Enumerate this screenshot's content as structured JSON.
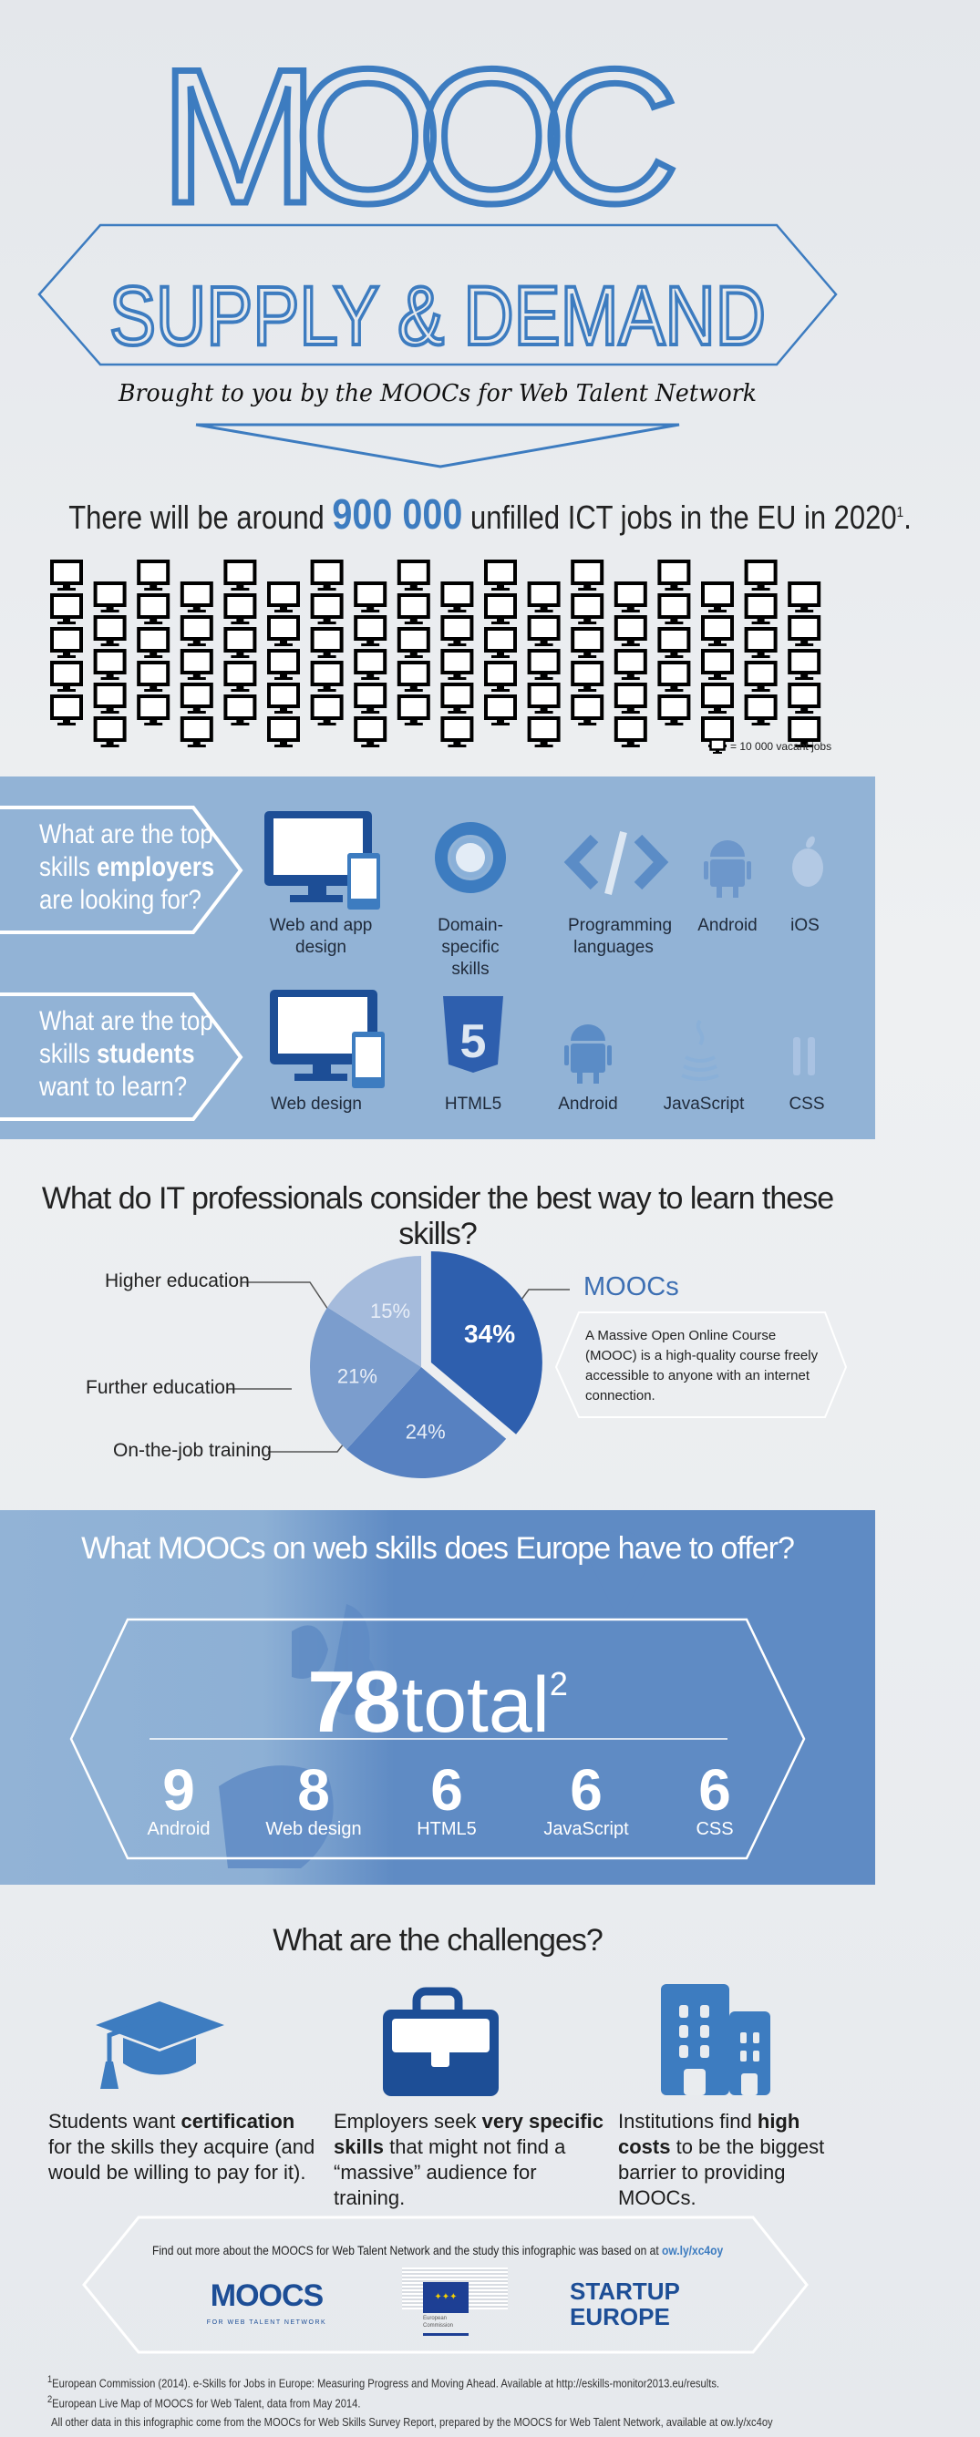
{
  "header": {
    "title": "MOOC",
    "subtitle": "SUPPLY & DEMAND",
    "tagline": "Brought to you by the MOOCs for Web Talent Network"
  },
  "jobs": {
    "text_before": "There will be around",
    "highlight": "900 000",
    "text_after": "unfilled ICT jobs in the EU in 2020",
    "footnote_ref": "1",
    "period": ".",
    "icon": "monitor-icon",
    "icon_count": 90,
    "legend": "= 10 000 vacant jobs"
  },
  "skills": {
    "employers": {
      "q1": "What are the top",
      "q2a": "skills ",
      "q2b": "employers",
      "q3": "are looking for?",
      "items": [
        {
          "label": "Web and app design",
          "icon": "monitor-phone-icon"
        },
        {
          "label": "Domain-specific skills",
          "icon": "ring-icon"
        },
        {
          "label": "Programming languages",
          "icon": "code-icon"
        },
        {
          "label": "Android",
          "icon": "android-icon"
        },
        {
          "label": "iOS",
          "icon": "apple-icon"
        }
      ]
    },
    "students": {
      "q1": "What are the top",
      "q2a": "skills ",
      "q2b": "students",
      "q3": "want to learn?",
      "items": [
        {
          "label": "Web design",
          "icon": "monitor-phone-icon"
        },
        {
          "label": "HTML5",
          "icon": "html5-icon"
        },
        {
          "label": "Android",
          "icon": "android-icon"
        },
        {
          "label": "JavaScript",
          "icon": "java-cup-icon"
        },
        {
          "label": "CSS",
          "icon": "css-braces-icon"
        }
      ]
    }
  },
  "learning": {
    "title": "What do IT professionals consider the best way to learn these skills?",
    "mooc_definition": "A Massive Open Online Course (MOOC) is a high-quality course freely accessible to anyone with an internet connection."
  },
  "chart_data": {
    "type": "pie",
    "title": "What do IT professionals consider the best way to learn these skills?",
    "slices": [
      {
        "label": "MOOCs",
        "value": 34,
        "display": "34%",
        "color": "#2e5fae",
        "exploded": true
      },
      {
        "label": "On-the-job training",
        "value": 24,
        "display": "24%",
        "color": "#5781c1"
      },
      {
        "label": "Further education",
        "value": 21,
        "display": "21%",
        "color": "#7b9dcd"
      },
      {
        "label": "Higher education",
        "value": 15,
        "display": "15%",
        "color": "#a5bbdc"
      }
    ]
  },
  "europe": {
    "title": "What MOOCs on web skills does Europe have to offer?",
    "total": "78",
    "total_word": "total",
    "footnote_ref": "2",
    "breakdown": [
      {
        "value": "9",
        "label": "Android"
      },
      {
        "value": "8",
        "label": "Web design"
      },
      {
        "value": "6",
        "label": "HTML5"
      },
      {
        "value": "6",
        "label": "JavaScript"
      },
      {
        "value": "6",
        "label": "CSS"
      }
    ]
  },
  "challenges": {
    "title": "What are the challenges?",
    "items": [
      {
        "icon": "graduation-cap-icon",
        "pre": "Students want ",
        "bold": "certification",
        "post": " for the skills they acquire (and would be willing to pay for it)."
      },
      {
        "icon": "briefcase-icon",
        "pre": "Employers seek ",
        "bold": "very specific skills",
        "post": " that might not find a “massive” audience for training."
      },
      {
        "icon": "buildings-icon",
        "pre": "Institutions find ",
        "bold": "high costs",
        "post": " to be the biggest barrier to providing MOOCs."
      }
    ]
  },
  "footer": {
    "more_text": "Find out more about the MOOCS for Web Talent Network and the study this infographic was based on at ",
    "link": "ow.ly/xc4oy",
    "logos": {
      "moocs": "MOOCS",
      "moocs_sub": "FOR WEB TALENT NETWORK",
      "ec": "European Commission",
      "startup_1": "STARTUP",
      "startup_2": "EUROPE"
    },
    "footnotes": [
      "European Commission (2014). e-Skills for Jobs in Europe: Measuring Progress and Moving Ahead. Available at http://eskills-monitor2013.eu/results.",
      "European Live Map of MOOCS for Web Talent, data from May 2014.",
      "All other data in this infographic come from the MOOCs for Web Skills Survey Report, prepared by the MOOCS for Web Talent Network, available at ow.ly/xc4oy"
    ],
    "footnote_refs": [
      "1",
      "2"
    ]
  },
  "colors": {
    "accent": "#3d7cc0",
    "dark_blue": "#1d4e96",
    "band": "#92b3d6",
    "map": "#5f8bc4"
  }
}
